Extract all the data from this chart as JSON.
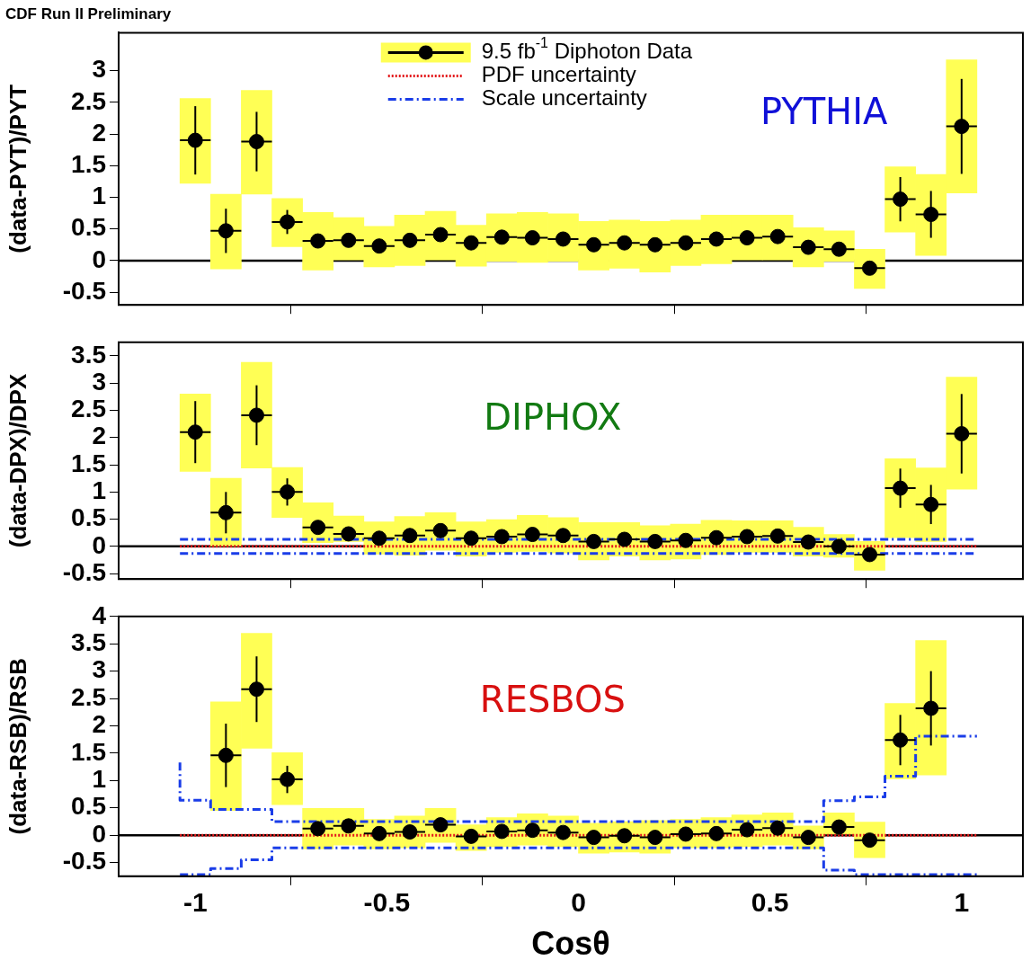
{
  "chart_data": [
    {
      "type": "scatter",
      "title": "CDF Run II Preliminary",
      "ylabel": "(data-PYT)/PYT",
      "legend": "top",
      "tick_labels": "y",
      "annotations": [
        "PYTHIA"
      ],
      "x": [
        -1,
        -0.92,
        -0.84,
        -0.76,
        -0.68,
        -0.6,
        -0.52,
        -0.44,
        -0.36,
        -0.28,
        -0.2,
        -0.12,
        -0.04,
        0.04,
        0.12,
        0.2,
        0.28,
        0.36,
        0.44,
        0.52,
        0.6,
        0.68,
        0.76,
        0.84,
        0.92,
        1
      ],
      "xlim": [
        -1.2,
        1.16
      ],
      "xticks": [
        -1,
        -0.5,
        0,
        0.5,
        1
      ],
      "ylim": [
        -0.7,
        3.6
      ],
      "yticks": [
        -0.5,
        0,
        0.5,
        1,
        1.5,
        2,
        2.5,
        3
      ],
      "ref_lines": [
        {
          "axis": "y",
          "value": 0,
          "color": "#000000",
          "line_style": "solid"
        }
      ],
      "series": [
        {
          "type": "bar",
          "color": "#ffff55",
          "base": [
            1.22,
            -0.13,
            1.05,
            0.22,
            -0.15,
            0.01,
            -0.1,
            -0.08,
            0.01,
            -0.09,
            -0.01,
            -0.03,
            -0.01,
            -0.15,
            -0.12,
            -0.18,
            -0.08,
            -0.05,
            0.01,
            0.01,
            -0.1,
            -0.01,
            -0.44,
            0.45,
            0.08,
            1.07
          ],
          "values": [
            1.34,
            1.18,
            1.64,
            0.76,
            0.91,
            0.67,
            0.64,
            0.8,
            0.77,
            0.65,
            0.75,
            0.79,
            0.75,
            0.77,
            0.76,
            0.8,
            0.72,
            0.77,
            0.71,
            0.71,
            0.62,
            0.48,
            0.62,
            1.03,
            1.28,
            2.1
          ]
        },
        {
          "name": "9.5 fb$^{-1}$ Diphoton Data",
          "marker": "circle",
          "color": "#000000",
          "values": [
            1.9,
            0.47,
            1.88,
            0.61,
            0.31,
            0.32,
            0.23,
            0.32,
            0.41,
            0.28,
            0.37,
            0.36,
            0.34,
            0.25,
            0.28,
            0.25,
            0.28,
            0.34,
            0.36,
            0.38,
            0.21,
            0.18,
            -0.12,
            0.97,
            0.73,
            2.12
          ],
          "errors": [
            0.54,
            0.35,
            0.47,
            0.19,
            0.1,
            0.06,
            0.05,
            0.05,
            0.05,
            0.05,
            0.05,
            0.05,
            0.05,
            0.05,
            0.05,
            0.05,
            0.05,
            0.05,
            0.05,
            0.05,
            0.05,
            0.06,
            0.1,
            0.35,
            0.37,
            0.75
          ],
          "xerrors": [
            0.04,
            0.04,
            0.04,
            0.04,
            0.04,
            0.04,
            0.04,
            0.04,
            0.04,
            0.04,
            0.04,
            0.04,
            0.04,
            0.04,
            0.04,
            0.04,
            0.04,
            0.04,
            0.04,
            0.04,
            0.04,
            0.04,
            0.04,
            0.04,
            0.04,
            0.04
          ]
        },
        {
          "type": "step",
          "name": "PDF uncertainty",
          "color": "#e31a1c",
          "line_style": "dotted",
          "values": [
            null,
            null,
            null,
            null,
            null,
            null,
            null,
            null,
            null,
            null,
            null,
            null,
            null,
            null,
            null,
            null,
            null,
            null,
            null,
            null,
            null,
            null,
            null,
            null,
            null,
            null
          ]
        },
        {
          "type": "step",
          "name": "Scale uncertainty",
          "color": "#1a3de8",
          "line_style": "dashed",
          "values": [
            null,
            null,
            null,
            null,
            null,
            null,
            null,
            null,
            null,
            null,
            null,
            null,
            null,
            null,
            null,
            null,
            null,
            null,
            null,
            null,
            null,
            null,
            null,
            null,
            null,
            null
          ]
        }
      ]
    },
    {
      "type": "scatter",
      "ylabel": "(data-DPX)/DPX",
      "tick_labels": "y",
      "annotations": [
        "DIPHOX"
      ],
      "x": [
        -1,
        -0.92,
        -0.84,
        -0.76,
        -0.68,
        -0.6,
        -0.52,
        -0.44,
        -0.36,
        -0.28,
        -0.2,
        -0.12,
        -0.04,
        0.04,
        0.12,
        0.2,
        0.28,
        0.36,
        0.44,
        0.52,
        0.6,
        0.68,
        0.76,
        0.84,
        0.92,
        1
      ],
      "xlim": [
        -1.2,
        1.16
      ],
      "xticks": [
        -1,
        -0.5,
        0,
        0.5,
        1
      ],
      "ylim": [
        -0.6,
        3.75
      ],
      "yticks": [
        -0.5,
        0,
        0.5,
        1,
        1.5,
        2,
        2.5,
        3,
        3.5
      ],
      "ref_lines": [
        {
          "axis": "y",
          "value": 0,
          "color": "#000000",
          "line_style": "solid"
        }
      ],
      "series": [
        {
          "type": "bar",
          "color": "#ffff55",
          "base": [
            1.38,
            0,
            1.44,
            0.53,
            0.07,
            0.09,
            -0.14,
            -0.16,
            -0.07,
            -0.18,
            -0.11,
            -0.09,
            -0.12,
            -0.25,
            -0.18,
            -0.25,
            -0.23,
            -0.15,
            -0.11,
            -0.11,
            -0.18,
            -0.2,
            -0.44,
            0.16,
            0.09,
            1.05
          ],
          "values": [
            1.42,
            1.25,
            1.94,
            0.92,
            0.73,
            0.47,
            0.59,
            0.71,
            0.69,
            0.63,
            0.6,
            0.66,
            0.65,
            0.69,
            0.62,
            0.63,
            0.64,
            0.63,
            0.58,
            0.58,
            0.53,
            0.42,
            0.53,
            1.45,
            1.35,
            2.06
          ]
        },
        {
          "type": "step",
          "color": "#1a3de8",
          "line_style": "dashed",
          "x": [
            -1.04,
            -0.96,
            -0.88,
            -0.8,
            -0.72,
            -0.64,
            -0.56,
            -0.48,
            -0.4,
            -0.32,
            -0.24,
            -0.16,
            -0.08,
            0,
            0.08,
            0.16,
            0.24,
            0.32,
            0.4,
            0.48,
            0.56,
            0.64,
            0.72,
            0.8,
            0.88,
            0.96,
            1.04
          ],
          "values": [
            0.13,
            0.13,
            0.13,
            0.13,
            0.13,
            0.13,
            0.13,
            0.13,
            0.13,
            0.13,
            0.13,
            0.13,
            0.13,
            0.13,
            0.13,
            0.13,
            0.13,
            0.13,
            0.13,
            0.13,
            0.13,
            0.13,
            0.13,
            0.13,
            0.13,
            0.13,
            0.13
          ]
        },
        {
          "type": "step",
          "color": "#1a3de8",
          "line_style": "dashed",
          "x": [
            -1.04,
            -0.96,
            -0.88,
            -0.8,
            -0.72,
            -0.64,
            -0.56,
            -0.48,
            -0.4,
            -0.32,
            -0.24,
            -0.16,
            -0.08,
            0,
            0.08,
            0.16,
            0.24,
            0.32,
            0.4,
            0.48,
            0.56,
            0.64,
            0.72,
            0.8,
            0.88,
            0.96,
            1.04
          ],
          "values": [
            -0.13,
            -0.13,
            -0.13,
            -0.13,
            -0.13,
            -0.13,
            -0.13,
            -0.13,
            -0.13,
            -0.13,
            -0.13,
            -0.13,
            -0.13,
            -0.13,
            -0.13,
            -0.13,
            -0.13,
            -0.13,
            -0.13,
            -0.13,
            -0.13,
            -0.13,
            -0.13,
            -0.13,
            -0.13,
            -0.13,
            -0.13
          ]
        },
        {
          "type": "step",
          "color": "#e31a1c",
          "line_style": "dotted",
          "x": [
            -1.04,
            -0.96,
            -0.88,
            -0.8,
            -0.72,
            -0.64,
            -0.56,
            -0.48,
            -0.4,
            -0.32,
            -0.24,
            -0.16,
            -0.08,
            0,
            0.08,
            0.16,
            0.24,
            0.32,
            0.4,
            0.48,
            0.56,
            0.64,
            0.72,
            0.8,
            0.88,
            0.96,
            1.04
          ],
          "values": [
            0,
            0,
            0,
            0,
            0,
            0,
            0,
            0,
            0,
            0,
            0,
            0,
            0,
            0,
            0,
            0,
            0,
            0,
            0,
            0,
            0,
            0,
            0,
            0,
            0,
            0,
            0
          ]
        },
        {
          "marker": "circle",
          "color": "#000000",
          "values": [
            2.1,
            0.62,
            2.41,
            1,
            0.35,
            0.23,
            0.15,
            0.2,
            0.29,
            0.15,
            0.18,
            0.22,
            0.2,
            0.09,
            0.13,
            0.09,
            0.11,
            0.16,
            0.18,
            0.19,
            0.08,
            0,
            -0.15,
            1.07,
            0.77,
            2.07
          ],
          "errors": [
            0.57,
            0.38,
            0.55,
            0.25,
            0.1,
            0.06,
            0.05,
            0.05,
            0.05,
            0.05,
            0.05,
            0.05,
            0.05,
            0.05,
            0.05,
            0.05,
            0.05,
            0.05,
            0.05,
            0.05,
            0.05,
            0.06,
            0.08,
            0.36,
            0.36,
            0.73
          ],
          "xerrors": [
            0.04,
            0.04,
            0.04,
            0.04,
            0.04,
            0.04,
            0.04,
            0.04,
            0.04,
            0.04,
            0.04,
            0.04,
            0.04,
            0.04,
            0.04,
            0.04,
            0.04,
            0.04,
            0.04,
            0.04,
            0.04,
            0.04,
            0.04,
            0.04,
            0.04,
            0.04
          ]
        }
      ]
    },
    {
      "type": "scatter",
      "ylabel": "(data-RSB)/RSB",
      "xlabel": "Cosθ",
      "annotations": [
        "RESBOS"
      ],
      "x": [
        -0.92,
        -0.84,
        -0.76,
        -0.68,
        -0.6,
        -0.52,
        -0.44,
        -0.36,
        -0.28,
        -0.2,
        -0.12,
        -0.04,
        0.04,
        0.12,
        0.2,
        0.28,
        0.36,
        0.44,
        0.52,
        0.6,
        0.68,
        0.76,
        0.84,
        0.92
      ],
      "xlim": [
        -1.2,
        1.16
      ],
      "xticks": [
        -1,
        -0.5,
        0,
        0.5,
        1
      ],
      "ylim": [
        -0.75,
        4
      ],
      "yticks": [
        -0.5,
        0,
        0.5,
        1,
        1.5,
        2,
        2.5,
        3,
        3.5,
        4
      ],
      "ref_lines": [
        {
          "axis": "y",
          "value": 0,
          "color": "#000000",
          "line_style": "solid"
        }
      ],
      "series": [
        {
          "type": "bar",
          "color": "#ffff55",
          "base": [
            0.45,
            1.59,
            0.56,
            -0.25,
            -0.18,
            -0.25,
            -0.23,
            -0.13,
            -0.28,
            -0.21,
            -0.18,
            -0.21,
            -0.33,
            -0.31,
            -0.33,
            -0.23,
            -0.23,
            -0.21,
            -0.18,
            -0.25,
            0.02,
            -0.41,
            1.03,
            1.1
          ],
          "values": [
            1.99,
            2.1,
            0.95,
            0.74,
            0.67,
            0.54,
            0.58,
            0.62,
            0.47,
            0.53,
            0.57,
            0.56,
            0.55,
            0.56,
            0.6,
            0.52,
            0.55,
            0.58,
            0.59,
            0.42,
            0.39,
            0.65,
            1.38,
            2.46
          ]
        },
        {
          "type": "step",
          "color": "#1a3de8",
          "line_style": "dashed",
          "x": [
            -1.04,
            -0.96,
            -0.88,
            -0.8,
            -0.72,
            -0.64,
            -0.56,
            -0.48,
            -0.4,
            -0.32,
            -0.24,
            -0.16,
            -0.08,
            0,
            0.08,
            0.16,
            0.24,
            0.32,
            0.4,
            0.48,
            0.56,
            0.64,
            0.72,
            0.8,
            0.88,
            0.96,
            1.04
          ],
          "values": [
            1.33,
            0.64,
            0.47,
            0.47,
            0.25,
            0.25,
            0.25,
            0.25,
            0.25,
            0.25,
            0.25,
            0.25,
            0.25,
            0.25,
            0.25,
            0.25,
            0.25,
            0.25,
            0.25,
            0.25,
            0.25,
            0.25,
            0.63,
            0.7,
            1.08,
            1.81,
            1.81
          ]
        },
        {
          "type": "step",
          "color": "#1a3de8",
          "line_style": "dashed",
          "x": [
            -1.04,
            -0.96,
            -0.88,
            -0.8,
            -0.72,
            -0.64,
            -0.56,
            -0.48,
            -0.4,
            -0.32,
            -0.24,
            -0.16,
            -0.08,
            0,
            0.08,
            0.16,
            0.24,
            0.32,
            0.4,
            0.48,
            0.56,
            0.64,
            0.72,
            0.8,
            0.88,
            0.96,
            1.04
          ],
          "values": [
            -0.72,
            -0.72,
            -0.61,
            -0.45,
            -0.23,
            -0.23,
            -0.23,
            -0.23,
            -0.23,
            -0.23,
            -0.23,
            -0.23,
            -0.23,
            -0.23,
            -0.23,
            -0.23,
            -0.23,
            -0.23,
            -0.23,
            -0.23,
            -0.23,
            -0.23,
            -0.64,
            -0.72,
            -0.72,
            -0.72,
            -0.72
          ]
        },
        {
          "type": "step",
          "color": "#e31a1c",
          "line_style": "dotted",
          "x": [
            -1.04,
            -0.96,
            -0.88,
            -0.8,
            -0.72,
            -0.64,
            -0.56,
            -0.48,
            -0.4,
            -0.32,
            -0.24,
            -0.16,
            -0.08,
            0,
            0.08,
            0.16,
            0.24,
            0.32,
            0.4,
            0.48,
            0.56,
            0.64,
            0.72,
            0.8,
            0.88,
            0.96,
            1.04
          ],
          "values": [
            0,
            0,
            0,
            0,
            0,
            0,
            0,
            0,
            0,
            0,
            0,
            0,
            0,
            0,
            0,
            0,
            0,
            0,
            0,
            0,
            0,
            0,
            0,
            0,
            0,
            0,
            0
          ]
        },
        {
          "marker": "circle",
          "color": "#000000",
          "values": [
            1.46,
            2.67,
            1.02,
            0.12,
            0.17,
            0.03,
            0.06,
            0.19,
            -0.02,
            0.07,
            0.09,
            0.05,
            -0.04,
            -0.01,
            -0.04,
            0.02,
            0.03,
            0.1,
            0.13,
            -0.04,
            0.15,
            -0.09,
            1.74,
            2.32
          ],
          "errors": [
            0.58,
            0.6,
            0.25,
            0.05,
            0.05,
            0.05,
            0.05,
            0.05,
            0.05,
            0.05,
            0.05,
            0.05,
            0.05,
            0.05,
            0.05,
            0.05,
            0.05,
            0.05,
            0.05,
            0.05,
            0.05,
            0.08,
            0.46,
            0.68
          ],
          "xerrors": [
            0.04,
            0.04,
            0.04,
            0.04,
            0.04,
            0.04,
            0.04,
            0.04,
            0.04,
            0.04,
            0.04,
            0.04,
            0.04,
            0.04,
            0.04,
            0.04,
            0.04,
            0.04,
            0.04,
            0.04,
            0.04,
            0.04,
            0.04,
            0.04
          ]
        }
      ]
    }
  ]
}
